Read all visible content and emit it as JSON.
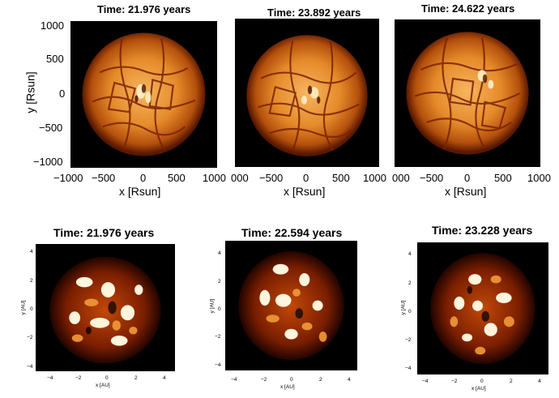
{
  "top_row": {
    "panels": [
      {
        "title": "Time: 21.976 years",
        "xlabel": "x [Rsun]",
        "ylabel": "y [Rsun]",
        "xticks": [
          "−1000",
          "−500",
          "0",
          "500",
          "1000"
        ],
        "yticks": [
          "1000",
          "500",
          "0",
          "−500",
          "−1000"
        ]
      },
      {
        "title": "Time: 23.892 years",
        "xlabel": "x [Rsun]",
        "xticks": [
          "000",
          "−500",
          "0",
          "500",
          "1000"
        ]
      },
      {
        "title": "Time: 24.622 years",
        "xlabel": "x [Rsun]",
        "xticks": [
          "000",
          "−500",
          "0",
          "500",
          "1000"
        ]
      }
    ]
  },
  "bottom_row": {
    "panels": [
      {
        "title": "Time: 21.976 years",
        "xlabel": "x [AU]",
        "ylabel": "y [AU]"
      },
      {
        "title": "Time: 22.594 years",
        "xlabel": "x [AU]",
        "ylabel": "y [AU]"
      },
      {
        "title": "Time: 23.228 years",
        "xlabel": "x [AU]",
        "ylabel": "y [AU]"
      }
    ],
    "xticks": [
      "−4",
      "−2",
      "0",
      "2",
      "4"
    ],
    "yticks": [
      "4",
      "2",
      "0",
      "−2",
      "−4"
    ]
  },
  "colors": {
    "background": "#000000",
    "star_core": "#f0a040",
    "star_edge": "#8a2a00",
    "hot_spot": "#fff6e0"
  }
}
